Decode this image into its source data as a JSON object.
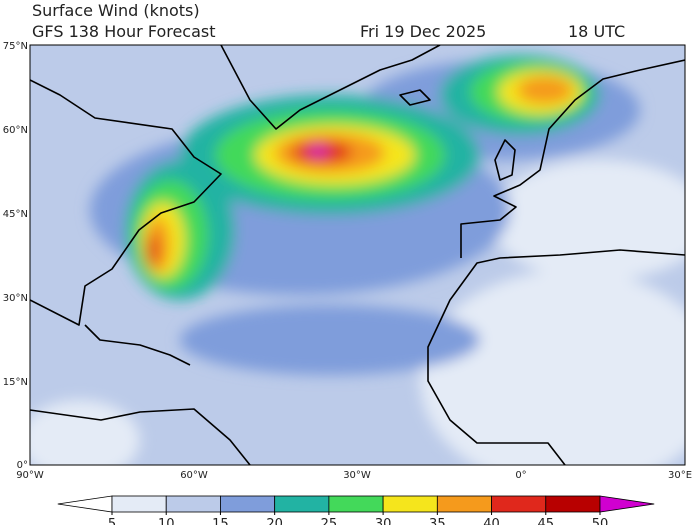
{
  "header": {
    "title": "Surface Wind (knots)",
    "subtitle": "GFS 138 Hour Forecast",
    "date": "Fri 19 Dec 2025",
    "time": "18 UTC"
  },
  "map": {
    "lat_labels": [
      "75°N",
      "60°N",
      "45°N",
      "30°N",
      "15°N",
      "0°"
    ],
    "lon_labels": [
      "90°W",
      "60°W",
      "30°W",
      "0°",
      "30°E"
    ]
  },
  "colorbar": {
    "ticks": [
      5,
      10,
      15,
      20,
      25,
      30,
      35,
      40,
      45,
      50
    ],
    "colors": [
      "#ffffff",
      "#e4ebf6",
      "#bccbe9",
      "#7f9ddb",
      "#22b3a3",
      "#43d95a",
      "#f5e51c",
      "#f59a1c",
      "#e0281c",
      "#b80000",
      "#d000d0"
    ]
  }
}
